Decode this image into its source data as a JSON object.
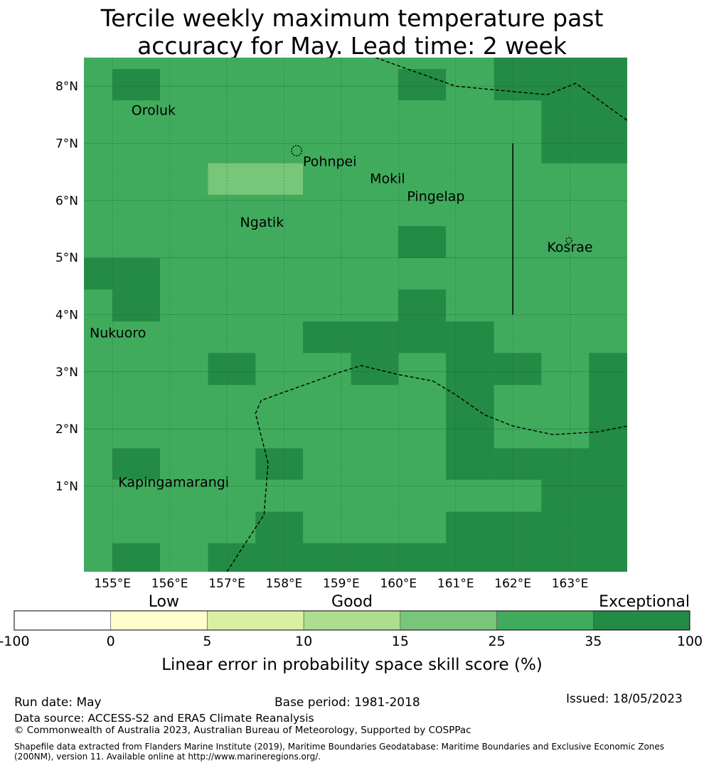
{
  "title_line1": "Tercile weekly maximum temperature past",
  "title_line2": "accuracy for May. Lead time: 2 week",
  "map": {
    "lon_min": 154.5,
    "lon_max": 164.0,
    "lat_min": -0.5,
    "lat_max": 8.5,
    "lon_ticks": [
      {
        "value": 155,
        "label": "155°E"
      },
      {
        "value": 156,
        "label": "156°E"
      },
      {
        "value": 157,
        "label": "157°E"
      },
      {
        "value": 158,
        "label": "158°E"
      },
      {
        "value": 159,
        "label": "159°E"
      },
      {
        "value": 160,
        "label": "160°E"
      },
      {
        "value": 161,
        "label": "161°E"
      },
      {
        "value": 162,
        "label": "162°E"
      },
      {
        "value": 163,
        "label": "163°E"
      }
    ],
    "lat_ticks": [
      {
        "value": 1,
        "label": "1°N"
      },
      {
        "value": 2,
        "label": "2°N"
      },
      {
        "value": 3,
        "label": "3°N"
      },
      {
        "value": 4,
        "label": "4°N"
      },
      {
        "value": 5,
        "label": "5°N"
      },
      {
        "value": 6,
        "label": "6°N"
      },
      {
        "value": 7,
        "label": "7°N"
      },
      {
        "value": 8,
        "label": "8°N"
      }
    ],
    "base_color": "#41ab5d",
    "cells": [
      {
        "lon0": 155.0,
        "lon1": 155.83,
        "lat0": 7.75,
        "lat1": 8.3,
        "color": "#238b45"
      },
      {
        "lon0": 160.0,
        "lon1": 160.83,
        "lat0": 7.75,
        "lat1": 8.3,
        "color": "#238b45"
      },
      {
        "lon0": 161.67,
        "lon1": 162.5,
        "lat0": 7.75,
        "lat1": 8.5,
        "color": "#238b45"
      },
      {
        "lon0": 162.5,
        "lon1": 164.0,
        "lat0": 6.65,
        "lat1": 8.5,
        "color": "#238b45"
      },
      {
        "lon0": 156.67,
        "lon1": 158.33,
        "lat0": 6.1,
        "lat1": 6.65,
        "color": "#78c679"
      },
      {
        "lon0": 160.0,
        "lon1": 160.83,
        "lat0": 4.99,
        "lat1": 5.55,
        "color": "#238b45"
      },
      {
        "lon0": 154.5,
        "lon1": 155.83,
        "lat0": 4.44,
        "lat1": 4.99,
        "color": "#238b45"
      },
      {
        "lon0": 155.0,
        "lon1": 155.83,
        "lat0": 3.88,
        "lat1": 4.44,
        "color": "#238b45"
      },
      {
        "lon0": 160.0,
        "lon1": 160.83,
        "lat0": 3.33,
        "lat1": 4.44,
        "color": "#238b45"
      },
      {
        "lon0": 158.33,
        "lon1": 161.67,
        "lat0": 3.33,
        "lat1": 3.88,
        "color": "#238b45"
      },
      {
        "lon0": 159.17,
        "lon1": 160.0,
        "lat0": 2.77,
        "lat1": 3.33,
        "color": "#238b45"
      },
      {
        "lon0": 160.83,
        "lon1": 161.67,
        "lat0": 2.77,
        "lat1": 3.33,
        "color": "#238b45"
      },
      {
        "lon0": 161.67,
        "lon1": 162.5,
        "lat0": 2.77,
        "lat1": 3.33,
        "color": "#238b45"
      },
      {
        "lon0": 156.67,
        "lon1": 157.5,
        "lat0": 2.77,
        "lat1": 3.33,
        "color": "#238b45"
      },
      {
        "lon0": 163.33,
        "lon1": 164.0,
        "lat0": 2.77,
        "lat1": 3.33,
        "color": "#238b45"
      },
      {
        "lon0": 160.83,
        "lon1": 161.67,
        "lat0": 2.22,
        "lat1": 2.77,
        "color": "#238b45"
      },
      {
        "lon0": 163.33,
        "lon1": 164.0,
        "lat0": 1.66,
        "lat1": 2.77,
        "color": "#238b45"
      },
      {
        "lon0": 160.83,
        "lon1": 161.67,
        "lat0": 1.11,
        "lat1": 2.22,
        "color": "#238b45"
      },
      {
        "lon0": 155.0,
        "lon1": 155.83,
        "lat0": 1.11,
        "lat1": 1.66,
        "color": "#238b45"
      },
      {
        "lon0": 157.5,
        "lon1": 158.33,
        "lat0": 1.11,
        "lat1": 1.66,
        "color": "#238b45"
      },
      {
        "lon0": 161.67,
        "lon1": 164.0,
        "lat0": 1.11,
        "lat1": 1.66,
        "color": "#238b45"
      },
      {
        "lon0": 162.5,
        "lon1": 164.0,
        "lat0": 0.55,
        "lat1": 1.11,
        "color": "#238b45"
      },
      {
        "lon0": 157.5,
        "lon1": 158.33,
        "lat0": 0.0,
        "lat1": 0.55,
        "color": "#238b45"
      },
      {
        "lon0": 160.83,
        "lon1": 164.0,
        "lat0": 0.0,
        "lat1": 0.55,
        "color": "#238b45"
      },
      {
        "lon0": 155.0,
        "lon1": 155.83,
        "lat0": -0.5,
        "lat1": 0.0,
        "color": "#238b45"
      },
      {
        "lon0": 156.67,
        "lon1": 164.0,
        "lat0": -0.5,
        "lat1": 0.0,
        "color": "#238b45"
      }
    ],
    "places": [
      {
        "name": "Oroluk",
        "lon": 155.33,
        "lat": 7.5
      },
      {
        "name": "Pohnpei",
        "lon": 158.33,
        "lat": 6.6
      },
      {
        "name": "Mokil",
        "lon": 159.5,
        "lat": 6.3
      },
      {
        "name": "Pingelap",
        "lon": 160.15,
        "lat": 5.99
      },
      {
        "name": "Ngatik",
        "lon": 157.23,
        "lat": 5.54
      },
      {
        "name": "Kosrae",
        "lon": 162.6,
        "lat": 5.1
      },
      {
        "name": "Nukuoro",
        "lon": 154.6,
        "lat": 3.6
      },
      {
        "name": "Kapingamarangi",
        "lon": 155.1,
        "lat": 0.99
      }
    ],
    "boundaries": [
      [
        [
          159.6,
          8.5
        ],
        [
          161.0,
          8.0
        ],
        [
          162.6,
          7.85
        ],
        [
          163.1,
          8.05
        ],
        [
          164.0,
          7.4
        ]
      ],
      [
        [
          157.0,
          -0.5
        ],
        [
          157.65,
          0.5
        ],
        [
          157.72,
          1.4
        ],
        [
          157.5,
          2.27
        ],
        [
          157.6,
          2.5
        ],
        [
          159.0,
          3.0
        ],
        [
          159.35,
          3.11
        ],
        [
          160.0,
          2.95
        ],
        [
          160.6,
          2.84
        ],
        [
          161.0,
          2.6
        ],
        [
          161.5,
          2.25
        ],
        [
          162.0,
          2.05
        ],
        [
          162.7,
          1.9
        ],
        [
          163.5,
          1.95
        ],
        [
          164.0,
          2.05
        ]
      ]
    ],
    "solid_lines": [
      [
        [
          162.0,
          7.0
        ],
        [
          162.0,
          4.0
        ]
      ]
    ],
    "islands": [
      {
        "lon": 158.22,
        "lat": 6.87,
        "r": 0.09
      },
      {
        "lon": 162.98,
        "lat": 5.3,
        "r": 0.05
      }
    ]
  },
  "colorbar": {
    "categories": [
      "Low",
      "Good",
      "Exceptional"
    ],
    "bins": [
      {
        "from": -100,
        "to": 0,
        "color": "#ffffff"
      },
      {
        "from": 0,
        "to": 5,
        "color": "#ffffcc"
      },
      {
        "from": 5,
        "to": 10,
        "color": "#d9f0a3"
      },
      {
        "from": 10,
        "to": 15,
        "color": "#addd8e"
      },
      {
        "from": 15,
        "to": 25,
        "color": "#78c679"
      },
      {
        "from": 25,
        "to": 35,
        "color": "#41ab5d"
      },
      {
        "from": 35,
        "to": 100,
        "color": "#238b45"
      }
    ],
    "ticks": [
      "-100",
      "0",
      "5",
      "10",
      "15",
      "25",
      "35",
      "100"
    ],
    "title": "Linear error in probability space skill score (%)"
  },
  "footer": {
    "run_date": "Run date: May",
    "base_period": "Base period: 1981-2018",
    "issued": "Issued: 18/05/2023",
    "data_source": "Data source: ACCESS-S2 and ERA5 Climate Reanalysis",
    "copyright": "© Commonwealth of Australia 2023, Australian Bureau of Meteorology, Supported by COSPPac",
    "shapefile": "Shapefile data extracted from Flanders Marine Institute (2019), Maritime Boundaries Geodatabase: Maritime Boundaries and Exclusive Economic Zones (200NM), version 11. Available online at http://www.marineregions.org/."
  }
}
